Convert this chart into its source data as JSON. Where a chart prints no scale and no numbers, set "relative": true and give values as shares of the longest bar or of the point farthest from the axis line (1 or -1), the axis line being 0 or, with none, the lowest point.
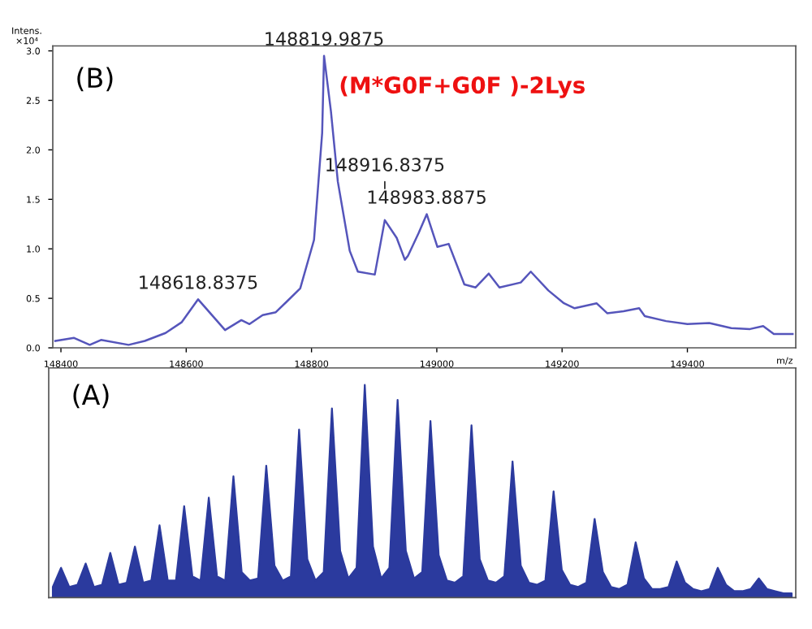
{
  "chart_data": [
    {
      "type": "line",
      "title": "(B)",
      "xlabel": "m/z",
      "ylabel": "Intens.\n×10⁴",
      "x": [
        148391,
        148421,
        148446,
        148464,
        148508,
        148534,
        148567,
        148593,
        148619,
        148662,
        148688,
        148701,
        148722,
        148743,
        148761,
        148782,
        148804,
        148817,
        148820,
        148831,
        148842,
        148861,
        148874,
        148901,
        148917,
        148936,
        148949,
        148954,
        148971,
        148984,
        149001,
        149019,
        149044,
        149062,
        149083,
        149100,
        149134,
        149150,
        149178,
        149203,
        149220,
        149255,
        149272,
        149298,
        149323,
        149332,
        149366,
        149400,
        149435,
        149470,
        149500,
        149521,
        149538,
        149568
      ],
      "series": [
        {
          "color": "#5555bb",
          "values": [
            0.07,
            0.1,
            0.03,
            0.08,
            0.03,
            0.07,
            0.15,
            0.26,
            0.49,
            0.18,
            0.28,
            0.24,
            0.33,
            0.36,
            0.47,
            0.6,
            1.09,
            2.17,
            2.95,
            2.39,
            1.68,
            0.98,
            0.77,
            0.74,
            1.29,
            1.11,
            0.89,
            0.93,
            1.16,
            1.35,
            1.02,
            1.05,
            0.64,
            0.61,
            0.75,
            0.61,
            0.66,
            0.77,
            0.58,
            0.45,
            0.4,
            0.45,
            0.35,
            0.37,
            0.4,
            0.32,
            0.27,
            0.24,
            0.25,
            0.2,
            0.19,
            0.22,
            0.14,
            0.14
          ]
        }
      ],
      "xlim": [
        148387,
        149573
      ],
      "xticks": [
        148400,
        148600,
        148800,
        149000,
        149200,
        149400
      ],
      "ylim": [
        0,
        3.05
      ],
      "yticks": [
        {
          "value": 0,
          "label": "0.0"
        },
        {
          "value": 0.5,
          "label": "0.5"
        },
        {
          "value": 1,
          "label": "1.0"
        },
        {
          "value": 1.5,
          "label": "1.5"
        },
        {
          "value": 2,
          "label": "2.0"
        },
        {
          "value": 2.5,
          "label": "2.5"
        },
        {
          "value": 3,
          "label": "3.0"
        }
      ],
      "grid": false,
      "legend": false,
      "marker": "none",
      "line_style": "solid",
      "annotations": [
        "(M*G0F+G0F )-2Lys",
        {
          "text": "148618.8375",
          "x": 148619,
          "y": 0.49
        },
        {
          "text": "148819.9875",
          "x": 148820,
          "y": 2.95
        },
        {
          "text": "148916.8375",
          "x": 148917,
          "y": 1.29
        },
        {
          "text": "148983.8875",
          "x": 148984,
          "y": 1.35
        }
      ]
    },
    {
      "type": "area",
      "title": "(A)",
      "relative": true,
      "grid": false,
      "legend": false,
      "categories": [
        null,
        null,
        null,
        null,
        null,
        null,
        null,
        null,
        null,
        null,
        null,
        null,
        null,
        null,
        null,
        null,
        null,
        null,
        null,
        null,
        null,
        null,
        null,
        null,
        null,
        null,
        null,
        null,
        null,
        null,
        null,
        null,
        null,
        null,
        null,
        null,
        null,
        null,
        null,
        null,
        null,
        null,
        null,
        null,
        null,
        null,
        null,
        null,
        null,
        null,
        null,
        null,
        null,
        null,
        null,
        null,
        null,
        null,
        null,
        null,
        null,
        null,
        null,
        null,
        null,
        null,
        null,
        null,
        null,
        null,
        null,
        null,
        null,
        null,
        null,
        null,
        null,
        null,
        null,
        null,
        null,
        null,
        null,
        null,
        null,
        null,
        null,
        null,
        null,
        null,
        null
      ],
      "series": [
        {
          "color": "#2b3a9e",
          "values": [
            0.05,
            0.14,
            0.05,
            0.06,
            0.16,
            0.05,
            0.06,
            0.21,
            0.06,
            0.07,
            0.24,
            0.07,
            0.08,
            0.34,
            0.08,
            0.08,
            0.43,
            0.1,
            0.08,
            0.47,
            0.1,
            0.08,
            0.57,
            0.12,
            0.08,
            0.09,
            0.62,
            0.15,
            0.08,
            0.1,
            0.79,
            0.18,
            0.08,
            0.12,
            0.89,
            0.22,
            0.09,
            0.14,
            1,
            0.24,
            0.09,
            0.14,
            0.93,
            0.22,
            0.09,
            0.12,
            0.83,
            0.2,
            0.08,
            0.07,
            0.1,
            0.81,
            0.18,
            0.08,
            0.07,
            0.1,
            0.64,
            0.15,
            0.07,
            0.06,
            0.08,
            0.5,
            0.13,
            0.06,
            0.05,
            0.07,
            0.37,
            0.12,
            0.05,
            0.04,
            0.06,
            0.26,
            0.09,
            0.04,
            0.04,
            0.05,
            0.17,
            0.07,
            0.04,
            0.03,
            0.04,
            0.14,
            0.06,
            0.03,
            0.03,
            0.04,
            0.09,
            0.04,
            0.03,
            0.02,
            0.02
          ]
        }
      ]
    }
  ]
}
